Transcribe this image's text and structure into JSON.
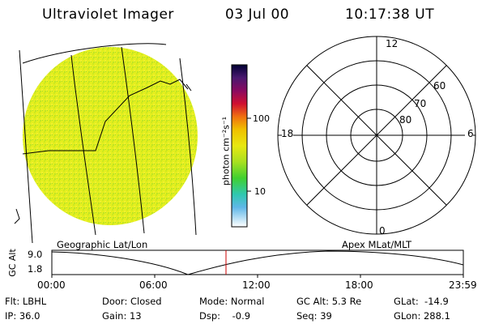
{
  "header": {
    "title": "Ultraviolet Imager",
    "date": "03 Jul 00",
    "time": "10:17:38 UT"
  },
  "colorbar": {
    "unit": "photon cm⁻²s⁻¹",
    "ticks": [
      "100",
      "10"
    ],
    "colors": [
      "#000033",
      "#3a1a6e",
      "#7a0a6a",
      "#c0103a",
      "#e02020",
      "#f08010",
      "#f0b000",
      "#e8e010",
      "#b0e020",
      "#50d020",
      "#30c8a0",
      "#40b0e0",
      "#a0d0f0",
      "#ffffff"
    ]
  },
  "polar_plot": {
    "mlt_labels": {
      "top": "12",
      "left": "18",
      "right": "6",
      "bottom": "0"
    },
    "lat_labels": [
      "60",
      "70",
      "80"
    ]
  },
  "projection_labels": {
    "left": "Geographic Lat/Lon",
    "right": "Apex MLat/MLT"
  },
  "altitude_plot": {
    "ylabel": "GC Alt",
    "yticks": [
      "9.0",
      "1.8"
    ],
    "xticks": [
      "00:00",
      "06:00",
      "12:00",
      "18:00",
      "23:59"
    ],
    "marker_color": "#cc0000"
  },
  "status": {
    "filter": "Flt: LBHL",
    "ip": "IP: 36.0",
    "door": "Door: Closed",
    "gain": "Gain: 13",
    "mode": "Mode: Normal",
    "dsp": "Dsp:    -0.9",
    "gc_alt": "GC Alt: 5.3 Re",
    "seq": "Seq: 39",
    "glat": "GLat:  -14.9",
    "glon": "GLon: 288.1"
  },
  "image_fill_color": "#e4ef1e"
}
